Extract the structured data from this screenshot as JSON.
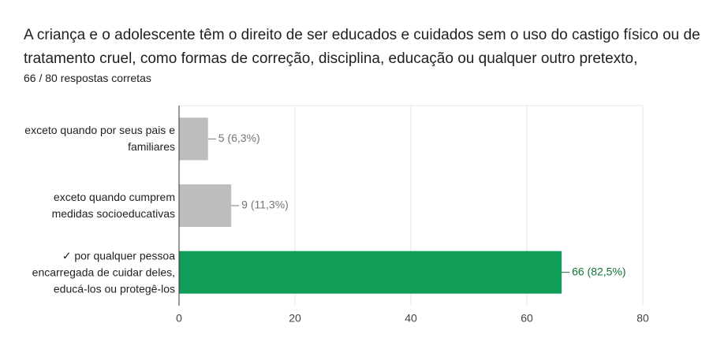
{
  "chart_data": {
    "type": "bar",
    "orientation": "horizontal",
    "title": "A criança e o adolescente têm o direito de ser educados e cuidados sem o uso do castigo físico ou de tratamento cruel, como formas de correção, disciplina, educação ou qualquer outro pretexto,",
    "subtitle": "66 / 80 respostas corretas",
    "categories": [
      "exceto quando por seus pais e familiares",
      "exceto quando cumprem medidas socioeducativas",
      "✓ por qualquer pessoa encarregada de cuidar deles, educá-los ou protegê-los"
    ],
    "values": [
      5,
      9,
      66
    ],
    "value_labels": [
      "5 (6,3%)",
      "9 (11,3%)",
      "66 (82,5%)"
    ],
    "colors": [
      "#bdbdbd",
      "#bdbdbd",
      "#0f9d58"
    ],
    "value_label_colors": [
      "#757575",
      "#757575",
      "#137333"
    ],
    "xlim": [
      0,
      80
    ],
    "xticks": [
      0,
      20,
      40,
      60,
      80
    ],
    "grid": true
  }
}
